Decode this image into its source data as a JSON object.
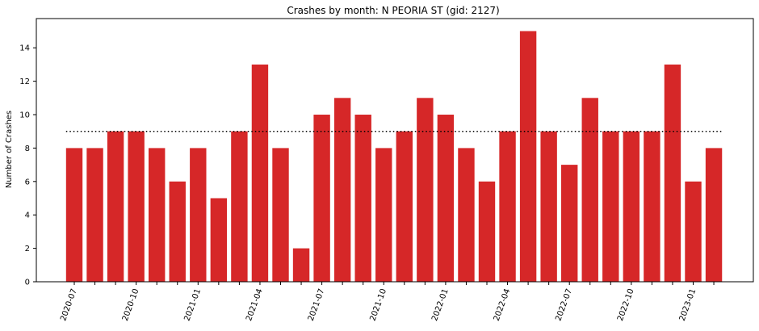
{
  "chart_data": {
    "type": "bar",
    "title": "Crashes by month: N PEORIA ST (gid: 2127)",
    "xlabel": "",
    "ylabel": "Number of Crashes",
    "categories": [
      "2020-07",
      "2020-08",
      "2020-09",
      "2020-10",
      "2020-11",
      "2020-12",
      "2021-01",
      "2021-02",
      "2021-03",
      "2021-04",
      "2021-05",
      "2021-06",
      "2021-07",
      "2021-08",
      "2021-09",
      "2021-10",
      "2021-11",
      "2021-12",
      "2022-01",
      "2022-02",
      "2022-03",
      "2022-04",
      "2022-05",
      "2022-06",
      "2022-07",
      "2022-08",
      "2022-09",
      "2022-10",
      "2022-11",
      "2022-12",
      "2023-01",
      "2023-02"
    ],
    "values": [
      8,
      8,
      9,
      9,
      8,
      6,
      8,
      5,
      9,
      13,
      8,
      2,
      10,
      11,
      10,
      8,
      9,
      11,
      10,
      8,
      6,
      9,
      15,
      9,
      7,
      11,
      9,
      9,
      9,
      13,
      6,
      8
    ],
    "xtick_labels": [
      "2020-07",
      "2020-10",
      "2021-01",
      "2021-04",
      "2021-07",
      "2021-10",
      "2022-01",
      "2022-04",
      "2022-07",
      "2022-10",
      "2023-01"
    ],
    "yticks": [
      0,
      2,
      4,
      6,
      8,
      10,
      12,
      14
    ],
    "ylim": [
      0,
      15.75
    ],
    "reference_line": {
      "value": 9,
      "style": "dotted",
      "color": "#000000"
    },
    "bar_color": "#d62728",
    "grid": false
  }
}
